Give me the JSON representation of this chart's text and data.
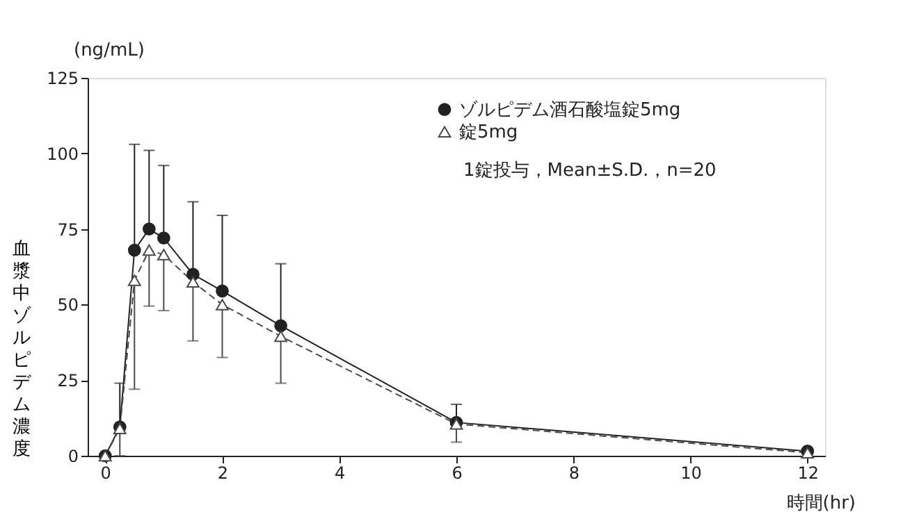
{
  "chart_data": {
    "type": "line",
    "xlabel": "時間(hr)",
    "ylabel": "血漿中ゾルピデム濃度",
    "annotations": [
      "(ng/mL)",
      "1錠投与，Mean±S.D.，n=20"
    ],
    "x": [
      0,
      0.25,
      0.5,
      0.75,
      1,
      1.5,
      2,
      3,
      6,
      12
    ],
    "series": [
      {
        "name": "ゾルピデム酒石酸塩錠5mg",
        "color": "#222222",
        "marker": "circle",
        "line_style": "solid",
        "values": [
          0,
          9.5,
          68,
          75,
          72,
          60,
          54.5,
          43,
          11,
          1.5
        ],
        "errors": [
          null,
          [
            9.5,
            24
          ],
          [
            68,
            103
          ],
          [
            75,
            101
          ],
          [
            72,
            96
          ],
          [
            60,
            84
          ],
          [
            54.5,
            79.5
          ],
          [
            43,
            63.5
          ],
          [
            11,
            17
          ],
          [
            1.5,
            2.5
          ]
        ]
      },
      {
        "name": "錠5mg",
        "color": "#4a4a4a",
        "marker": "triangle",
        "line_style": "dashed",
        "values": [
          0,
          9,
          58,
          68,
          66.5,
          57.5,
          50,
          39.5,
          10.5,
          1
        ],
        "errors": [
          null,
          [
            0,
            9
          ],
          [
            22,
            58
          ],
          [
            49.5,
            68
          ],
          [
            48,
            66.5
          ],
          [
            38,
            57.5
          ],
          [
            32.5,
            50
          ],
          [
            24,
            39.5
          ],
          [
            4.5,
            10.5
          ],
          [
            0.5,
            1
          ]
        ]
      }
    ],
    "xlim": [
      -0.3,
      12.3
    ],
    "xticks": [
      0,
      2,
      4,
      6,
      8,
      10,
      12
    ],
    "ylim": [
      0,
      125
    ],
    "yticks": [
      0,
      25,
      50,
      75,
      100,
      125
    ],
    "grid": false,
    "legend": "top right"
  }
}
